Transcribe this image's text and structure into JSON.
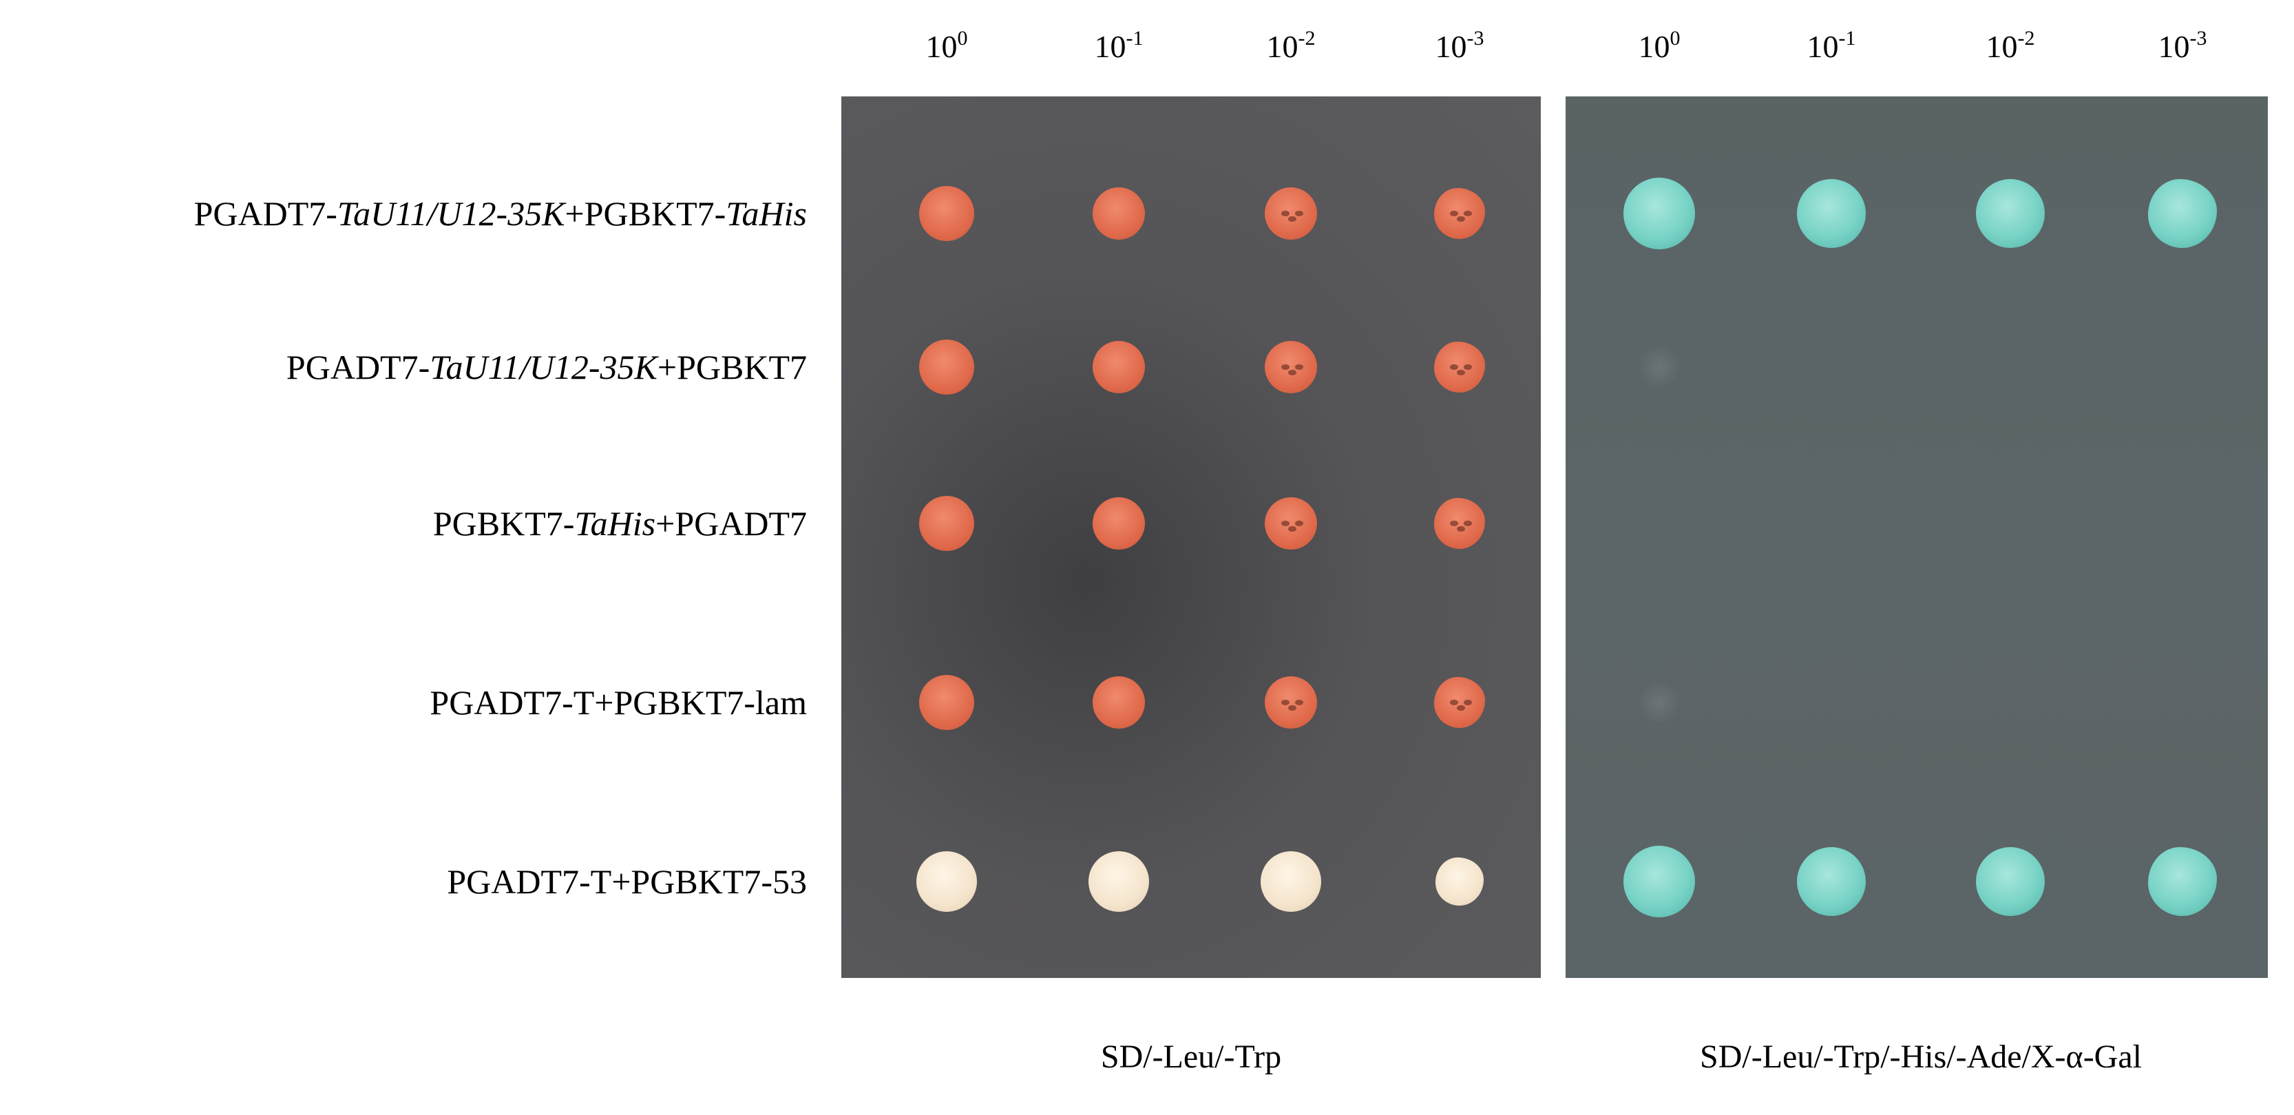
{
  "dilutions": [
    {
      "base": "10",
      "exp": "0"
    },
    {
      "base": "10",
      "exp": "-1"
    },
    {
      "base": "10",
      "exp": "-2"
    },
    {
      "base": "10",
      "exp": "-3"
    }
  ],
  "rows": [
    {
      "parts": [
        {
          "t": "PGADT7-"
        },
        {
          "t": "TaU11/U12-35K",
          "i": true
        },
        {
          "t": "+PGBKT7-"
        },
        {
          "t": "TaHis",
          "i": true
        }
      ]
    },
    {
      "parts": [
        {
          "t": "PGADT7-"
        },
        {
          "t": "TaU11/U12-35K",
          "i": true
        },
        {
          "t": "+PGBKT7"
        }
      ]
    },
    {
      "parts": [
        {
          "t": "PGBKT7-"
        },
        {
          "t": "TaHis",
          "i": true
        },
        {
          "t": "+PGADT7"
        }
      ]
    },
    {
      "parts": [
        {
          "t": "PGADT7-T+PGBKT7-lam"
        }
      ]
    },
    {
      "parts": [
        {
          "t": "PGADT7-T+PGBKT7-53"
        }
      ]
    }
  ],
  "conditions": {
    "left": "SD/-Leu/-Trp",
    "right": "SD/-Leu/-Trp/-His/-Ade/X-α-Gal"
  },
  "growth": {
    "left": [
      [
        "red",
        "red",
        "red",
        "red"
      ],
      [
        "red",
        "red",
        "red",
        "red"
      ],
      [
        "red",
        "red",
        "red",
        "red"
      ],
      [
        "red",
        "red",
        "red",
        "red"
      ],
      [
        "cream",
        "cream",
        "cream",
        "cream"
      ]
    ],
    "right": [
      [
        "blue",
        "blue",
        "blue",
        "blue"
      ],
      [
        "faint",
        "none",
        "none",
        "none"
      ],
      [
        "none",
        "none",
        "none",
        "none"
      ],
      [
        "faint",
        "none",
        "none",
        "none"
      ],
      [
        "blue",
        "blue",
        "blue",
        "blue"
      ]
    ]
  },
  "colors": {
    "left_plate": "#555457",
    "right_plate": "#5c6567",
    "red_colony": "#e06a4b",
    "cream_colony": "#f4e4cc",
    "blue_colony": "#78d3c6"
  }
}
